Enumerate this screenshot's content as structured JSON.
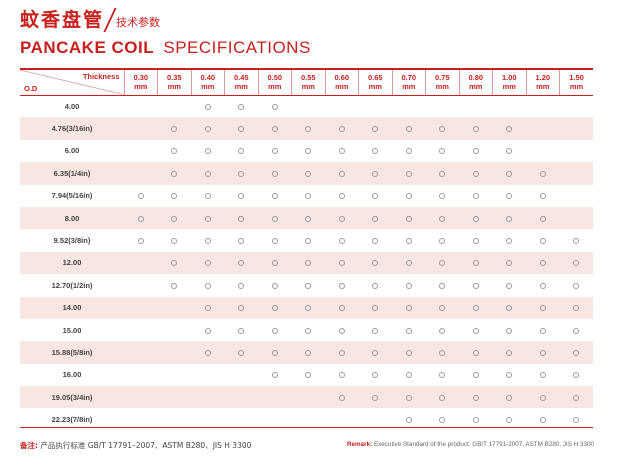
{
  "header": {
    "cn_title": "蚊香盘管",
    "cn_subtitle": "技术参数",
    "en_title_bold": "PANCAKE COIL",
    "en_title_light": "SPECIFICATIONS"
  },
  "table": {
    "corner_thickness": "Thickness",
    "corner_od": "O.D",
    "columns": [
      {
        "value": "0.30",
        "unit": "mm"
      },
      {
        "value": "0.35",
        "unit": "mm"
      },
      {
        "value": "0.40",
        "unit": "mm"
      },
      {
        "value": "0.45",
        "unit": "mm"
      },
      {
        "value": "0.50",
        "unit": "mm"
      },
      {
        "value": "0.55",
        "unit": "mm"
      },
      {
        "value": "0.60",
        "unit": "mm"
      },
      {
        "value": "0.65",
        "unit": "mm"
      },
      {
        "value": "0.70",
        "unit": "mm"
      },
      {
        "value": "0.75",
        "unit": "mm"
      },
      {
        "value": "0.80",
        "unit": "mm"
      },
      {
        "value": "1.00",
        "unit": "mm"
      },
      {
        "value": "1.20",
        "unit": "mm"
      },
      {
        "value": "1.50",
        "unit": "mm"
      }
    ],
    "rows": [
      {
        "od": "4.00",
        "avail": [
          0,
          0,
          1,
          1,
          1,
          0,
          0,
          0,
          0,
          0,
          0,
          0,
          0,
          0
        ]
      },
      {
        "od": "4.76(3/16in)",
        "avail": [
          0,
          1,
          1,
          1,
          1,
          1,
          1,
          1,
          1,
          1,
          1,
          1,
          0,
          0
        ]
      },
      {
        "od": "6.00",
        "avail": [
          0,
          1,
          1,
          1,
          1,
          1,
          1,
          1,
          1,
          1,
          1,
          1,
          0,
          0
        ]
      },
      {
        "od": "6.35(1/4in)",
        "avail": [
          0,
          1,
          1,
          1,
          1,
          1,
          1,
          1,
          1,
          1,
          1,
          1,
          1,
          0
        ]
      },
      {
        "od": "7.94(5/16in)",
        "avail": [
          1,
          1,
          1,
          1,
          1,
          1,
          1,
          1,
          1,
          1,
          1,
          1,
          1,
          0
        ]
      },
      {
        "od": "8.00",
        "avail": [
          1,
          1,
          1,
          1,
          1,
          1,
          1,
          1,
          1,
          1,
          1,
          1,
          1,
          0
        ]
      },
      {
        "od": "9.52(3/8in)",
        "avail": [
          1,
          1,
          1,
          1,
          1,
          1,
          1,
          1,
          1,
          1,
          1,
          1,
          1,
          1
        ]
      },
      {
        "od": "12.00",
        "avail": [
          0,
          1,
          1,
          1,
          1,
          1,
          1,
          1,
          1,
          1,
          1,
          1,
          1,
          1
        ]
      },
      {
        "od": "12.70(1/2in)",
        "avail": [
          0,
          1,
          1,
          1,
          1,
          1,
          1,
          1,
          1,
          1,
          1,
          1,
          1,
          1
        ]
      },
      {
        "od": "14.00",
        "avail": [
          0,
          0,
          1,
          1,
          1,
          1,
          1,
          1,
          1,
          1,
          1,
          1,
          1,
          1
        ]
      },
      {
        "od": "15.00",
        "avail": [
          0,
          0,
          1,
          1,
          1,
          1,
          1,
          1,
          1,
          1,
          1,
          1,
          1,
          1
        ]
      },
      {
        "od": "15.88(5/8in)",
        "avail": [
          0,
          0,
          1,
          1,
          1,
          1,
          1,
          1,
          1,
          1,
          1,
          1,
          1,
          1
        ]
      },
      {
        "od": "16.00",
        "avail": [
          0,
          0,
          0,
          0,
          1,
          1,
          1,
          1,
          1,
          1,
          1,
          1,
          1,
          1
        ]
      },
      {
        "od": "19.05(3/4in)",
        "avail": [
          0,
          0,
          0,
          0,
          0,
          0,
          1,
          1,
          1,
          1,
          1,
          1,
          1,
          1
        ]
      },
      {
        "od": "22.23(7/8in)",
        "avail": [
          0,
          0,
          0,
          0,
          0,
          0,
          0,
          0,
          1,
          1,
          1,
          1,
          1,
          1
        ]
      }
    ]
  },
  "footer": {
    "cn_label": "备注:",
    "cn_text": "产品执行标准 GB/T 17791–2007、ASTM B280、JIS H 3300",
    "en_label": "Remark:",
    "en_text": "Executive Standard of the product: GB/T 17791-2007, ASTM B280, JIS H 3300"
  },
  "colors": {
    "accent": "#c8201e",
    "row_alt": "#f8e6e3",
    "marker": "#9a9a9a"
  },
  "icons": {
    "availability_marker": "hollow-circle-icon"
  }
}
